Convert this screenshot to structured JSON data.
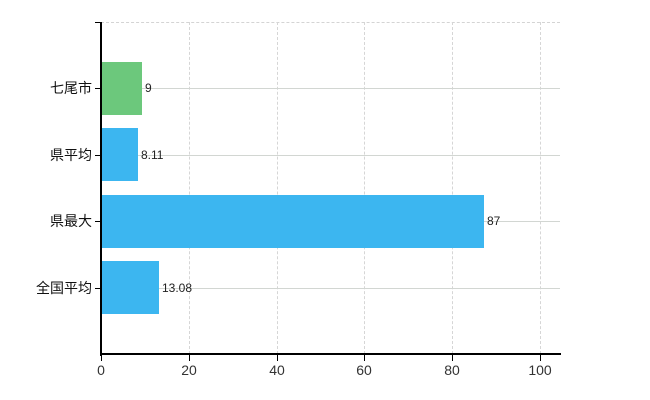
{
  "chart_data": {
    "type": "bar",
    "orientation": "horizontal",
    "title": "",
    "categories": [
      "七尾市",
      "県平均",
      "県最大",
      "全国平均"
    ],
    "values": [
      9,
      8.11,
      87,
      13.08
    ],
    "value_labels": [
      "9",
      "8.11",
      "87",
      "13.08"
    ],
    "bar_colors": [
      "#6cc87c",
      "#3cb6f0",
      "#3cb6f0",
      "#3cb6f0"
    ],
    "x_ticks": [
      "0",
      "20",
      "40",
      "60",
      "80",
      "100"
    ],
    "x_tick_values": [
      0,
      20,
      40,
      60,
      80,
      100
    ],
    "xlim": [
      0,
      100
    ],
    "ylabel": "",
    "xlabel": "",
    "grid": "on",
    "legend": "none",
    "background": "#ffffff",
    "colors": {
      "bar_blue": "#3cb6f0",
      "bar_green": "#6cc87c",
      "axis": "#000000",
      "gridline_vertical": "#d6d6d6",
      "gridline_horizontal": "#d2d6d2",
      "category_text": "#111111",
      "value_text": "#222222",
      "tick_text": "#333333"
    }
  }
}
